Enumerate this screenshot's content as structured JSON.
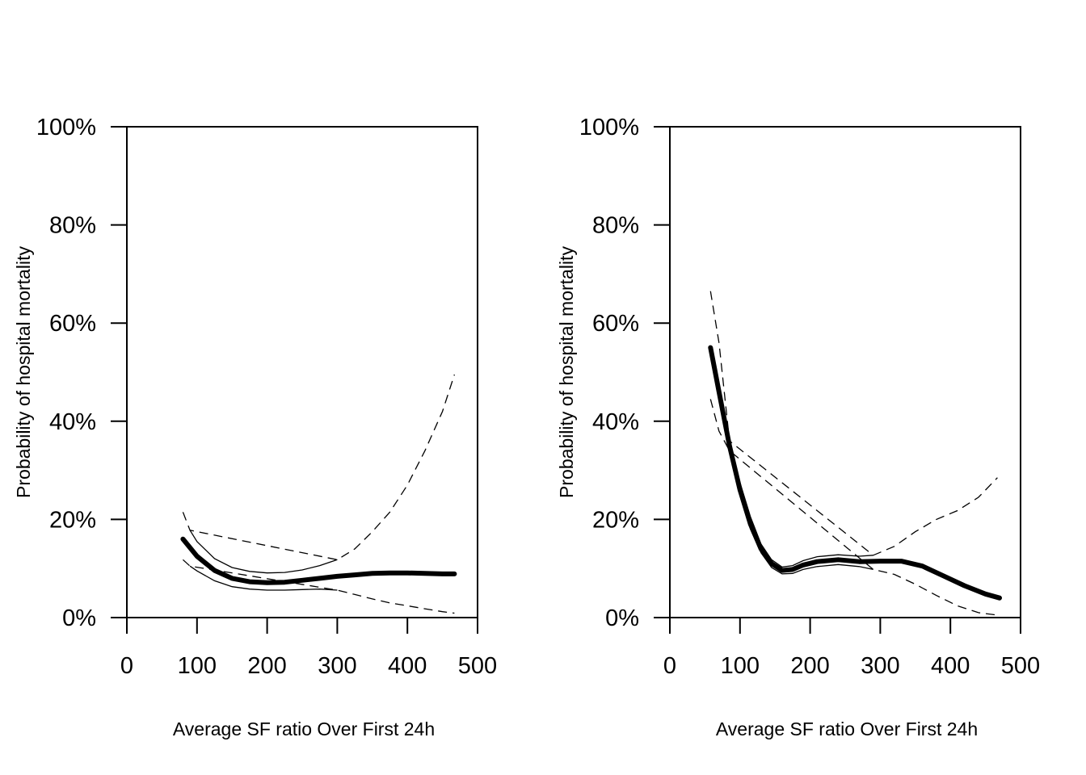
{
  "chart_data": [
    {
      "type": "line",
      "xlabel": "Average SF ratio Over First 24h",
      "ylabel": "Probability of hospital mortality",
      "xlim": [
        0,
        500
      ],
      "ylim": [
        0,
        100
      ],
      "x_ticks": [
        0,
        100,
        200,
        300,
        400,
        500
      ],
      "x_tick_labels": [
        "0",
        "100",
        "200",
        "300",
        "400",
        "500"
      ],
      "y_ticks": [
        0,
        20,
        40,
        60,
        80,
        100
      ],
      "y_tick_labels": [
        "0%",
        "20%",
        "40%",
        "60%",
        "80%",
        "100%"
      ],
      "grid": false,
      "legend": "none",
      "series": [
        {
          "style": "fit",
          "x": [
            80,
            100,
            125,
            150,
            175,
            200,
            225,
            250,
            275,
            300,
            325,
            350,
            375,
            400,
            425,
            450,
            467
          ],
          "y": [
            16.0,
            12.5,
            9.6,
            8.0,
            7.3,
            7.1,
            7.2,
            7.6,
            8.0,
            8.4,
            8.7,
            9.0,
            9.1,
            9.1,
            9.0,
            8.9,
            8.9
          ]
        },
        {
          "style": "ci-inner",
          "x": [
            90,
            100,
            125,
            150,
            175,
            200,
            225,
            250,
            275,
            300
          ],
          "y": [
            17.8,
            15.5,
            12.0,
            10.2,
            9.4,
            9.1,
            9.2,
            9.7,
            10.6,
            11.8
          ]
        },
        {
          "style": "ci-inner",
          "x": [
            90,
            100,
            125,
            150,
            175,
            200,
            225,
            250,
            275,
            300
          ],
          "y": [
            10.5,
            9.5,
            7.5,
            6.3,
            5.8,
            5.6,
            5.6,
            5.7,
            5.8,
            5.6
          ]
        },
        {
          "style": "ci-outer",
          "x": [
            80,
            90,
            300,
            325,
            350,
            375,
            400,
            425,
            450,
            467
          ],
          "y": [
            21.5,
            17.8,
            11.8,
            14.0,
            17.5,
            21.5,
            27.0,
            34.0,
            42.0,
            49.5
          ]
        },
        {
          "style": "ci-outer",
          "x": [
            80,
            90,
            300,
            325,
            350,
            375,
            400,
            425,
            450,
            467
          ],
          "y": [
            11.8,
            10.5,
            5.6,
            4.7,
            3.8,
            3.0,
            2.4,
            1.8,
            1.2,
            0.9
          ]
        }
      ]
    },
    {
      "type": "line",
      "xlabel": "Average SF ratio Over First 24h",
      "ylabel": "Probability of hospital mortality",
      "xlim": [
        0,
        500
      ],
      "ylim": [
        0,
        100
      ],
      "x_ticks": [
        0,
        100,
        200,
        300,
        400,
        500
      ],
      "x_tick_labels": [
        "0",
        "100",
        "200",
        "300",
        "400",
        "500"
      ],
      "y_ticks": [
        0,
        20,
        40,
        60,
        80,
        100
      ],
      "y_tick_labels": [
        "0%",
        "20%",
        "40%",
        "60%",
        "80%",
        "100%"
      ],
      "grid": false,
      "legend": "none",
      "series": [
        {
          "style": "fit",
          "x": [
            58,
            70,
            85,
            100,
            115,
            130,
            145,
            160,
            175,
            190,
            210,
            240,
            270,
            300,
            330,
            360,
            390,
            420,
            450,
            470
          ],
          "y": [
            55.0,
            46.0,
            35.0,
            26.0,
            19.0,
            14.0,
            11.0,
            9.6,
            9.8,
            10.7,
            11.4,
            11.8,
            11.4,
            11.5,
            11.5,
            10.5,
            8.5,
            6.5,
            4.8,
            4.0
          ]
        },
        {
          "style": "ci-inner",
          "x": [
            85,
            100,
            115,
            130,
            145,
            160,
            175,
            190,
            210,
            240,
            270,
            290
          ],
          "y": [
            36.0,
            27.5,
            20.5,
            15.0,
            11.8,
            10.3,
            10.6,
            11.6,
            12.4,
            12.8,
            12.5,
            12.7
          ]
        },
        {
          "style": "ci-inner",
          "x": [
            85,
            100,
            115,
            130,
            145,
            160,
            175,
            190,
            210,
            240,
            270,
            290
          ],
          "y": [
            34.0,
            25.0,
            18.0,
            13.2,
            10.2,
            8.9,
            9.0,
            9.8,
            10.4,
            10.8,
            10.4,
            9.8
          ]
        },
        {
          "style": "ci-outer",
          "x": [
            58,
            70,
            85,
            290,
            320,
            350,
            380,
            410,
            440,
            467
          ],
          "y": [
            66.5,
            56.0,
            36.0,
            12.7,
            14.5,
            17.5,
            20.0,
            21.8,
            24.5,
            28.5
          ]
        },
        {
          "style": "ci-outer",
          "x": [
            58,
            70,
            85,
            290,
            320,
            350,
            380,
            410,
            440,
            467
          ],
          "y": [
            44.5,
            38.0,
            34.0,
            9.8,
            8.8,
            6.8,
            4.5,
            2.4,
            1.0,
            0.5
          ]
        }
      ]
    }
  ]
}
